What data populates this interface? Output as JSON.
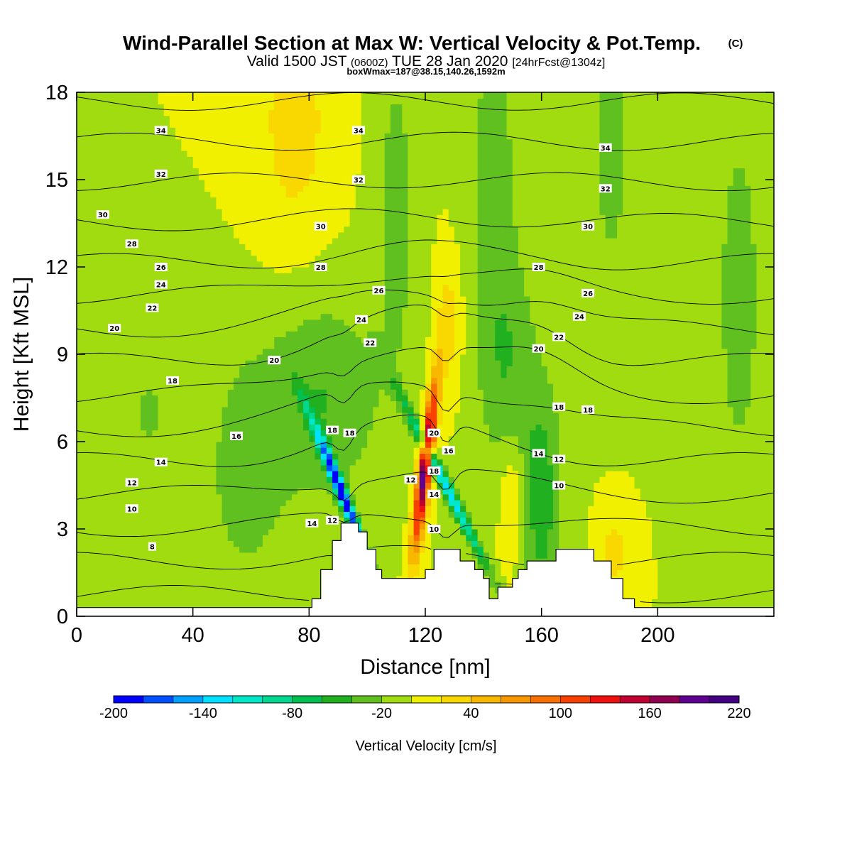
{
  "title": "Wind-Parallel Section at Max W: Vertical Velocity & Pot.Temp.",
  "title_mark": "(C)",
  "subtitle_main": "Valid 1500 JST",
  "subtitle_utc": "(0600Z)",
  "subtitle_date": "TUE 28 Jan 2020",
  "subtitle_fcst": "[24hrFcst@1304z]",
  "subtitle2": "boxWmax=187@38.15,140.26,1592m",
  "chart_data": {
    "type": "heatmap",
    "xlabel": "Distance [nm]",
    "ylabel": "Height [Kft MSL]",
    "xlim": [
      0,
      240
    ],
    "ylim": [
      0,
      18
    ],
    "x_ticks": [
      "0",
      "40",
      "80",
      "120",
      "160",
      "200"
    ],
    "y_ticks": [
      "0",
      "3",
      "6",
      "9",
      "12",
      "15",
      "18"
    ],
    "colorbar": {
      "label": "Vertical Velocity [cm/s]",
      "tick_labels": [
        "-200",
        "-140",
        "-80",
        "-20",
        "40",
        "100",
        "160",
        "220"
      ],
      "min": -200,
      "max": 220,
      "step": 20,
      "colors": [
        "#0000ff",
        "#0050ff",
        "#00a0ff",
        "#00e0ff",
        "#00e8c8",
        "#00d890",
        "#00c050",
        "#20b020",
        "#60c020",
        "#a0dc10",
        "#f0f000",
        "#f8d800",
        "#f8b800",
        "#f89800",
        "#f87000",
        "#f84000",
        "#f01010",
        "#c00030",
        "#900050",
        "#600090",
        "#400080"
      ]
    },
    "terrain_kft": [
      [
        0,
        0.3
      ],
      [
        81,
        0.3
      ],
      [
        81,
        0.6
      ],
      [
        84,
        0.6
      ],
      [
        84,
        1.6
      ],
      [
        88,
        1.6
      ],
      [
        88,
        2.6
      ],
      [
        91,
        2.6
      ],
      [
        91,
        3.2
      ],
      [
        97,
        3.2
      ],
      [
        97,
        2.9
      ],
      [
        100,
        2.9
      ],
      [
        100,
        2.3
      ],
      [
        103,
        2.3
      ],
      [
        103,
        1.6
      ],
      [
        105,
        1.6
      ],
      [
        105,
        1.3
      ],
      [
        120,
        1.3
      ],
      [
        120,
        1.6
      ],
      [
        123,
        1.6
      ],
      [
        123,
        2.3
      ],
      [
        132,
        2.3
      ],
      [
        132,
        1.9
      ],
      [
        137,
        1.9
      ],
      [
        137,
        1.6
      ],
      [
        140,
        1.6
      ],
      [
        140,
        1.3
      ],
      [
        142,
        1.3
      ],
      [
        142,
        0.6
      ],
      [
        145,
        0.6
      ],
      [
        145,
        1.0
      ],
      [
        150,
        1.0
      ],
      [
        150,
        1.3
      ],
      [
        152,
        1.3
      ],
      [
        152,
        1.6
      ],
      [
        155,
        1.6
      ],
      [
        155,
        1.9
      ],
      [
        165,
        1.9
      ],
      [
        165,
        2.3
      ],
      [
        178,
        2.3
      ],
      [
        178,
        1.9
      ],
      [
        184,
        1.9
      ],
      [
        184,
        1.3
      ],
      [
        188,
        1.3
      ],
      [
        188,
        0.6
      ],
      [
        192,
        0.6
      ],
      [
        192,
        0.3
      ],
      [
        240,
        0.3
      ]
    ],
    "w_features": [
      {
        "x": 120,
        "y": 5.2,
        "sx": 1.6,
        "sy": 2.0,
        "tilt": 0.12,
        "w": 200
      },
      {
        "x": 91,
        "y": 4.3,
        "sx": 1.4,
        "sy": 1.7,
        "tilt": -0.4,
        "w": -200
      },
      {
        "x": 127,
        "y": 4.5,
        "sx": 1.6,
        "sy": 2.0,
        "tilt": -0.5,
        "w": -130
      },
      {
        "x": 85,
        "y": 7.5,
        "sx": 14,
        "sy": 2.5,
        "tilt": 0,
        "w": -40
      },
      {
        "x": 58,
        "y": 5,
        "sx": 10,
        "sy": 3,
        "tilt": 0,
        "w": -30
      },
      {
        "x": 75,
        "y": 17,
        "sx": 9,
        "sy": 3,
        "tilt": 0,
        "w": 30
      },
      {
        "x": 110,
        "y": 14,
        "sx": 5,
        "sy": 4,
        "tilt": 0,
        "w": -30
      },
      {
        "x": 143,
        "y": 16,
        "sx": 6,
        "sy": 3,
        "tilt": 0,
        "w": -30
      },
      {
        "x": 147,
        "y": 9,
        "sx": 7,
        "sy": 3,
        "tilt": 0,
        "w": -40
      },
      {
        "x": 160,
        "y": 4,
        "sx": 5,
        "sy": 3,
        "tilt": 0,
        "w": -50
      },
      {
        "x": 184,
        "y": 16.5,
        "sx": 5,
        "sy": 4,
        "tilt": 0,
        "w": -30
      },
      {
        "x": 228,
        "y": 11,
        "sx": 6,
        "sy": 5,
        "tilt": 0,
        "w": -30
      },
      {
        "x": 128,
        "y": 10,
        "sx": 3,
        "sy": 1.5,
        "tilt": 0,
        "w": 30
      },
      {
        "x": 150,
        "y": 4,
        "sx": 3,
        "sy": 1.5,
        "tilt": 0,
        "w": 30
      },
      {
        "x": 185,
        "y": 2.2,
        "sx": 3,
        "sy": 1,
        "tilt": 0,
        "w": 30
      },
      {
        "x": 25,
        "y": 7,
        "sx": 4,
        "sy": 1.2,
        "tilt": 0,
        "w": -25
      }
    ],
    "theta_contours": {
      "levels": [
        4,
        6,
        8,
        10,
        12,
        14,
        16,
        18,
        20,
        22,
        24,
        26,
        28,
        30,
        32,
        34
      ],
      "labels": [
        {
          "text": "34",
          "x": 29,
          "y": 16.7
        },
        {
          "text": "34",
          "x": 97,
          "y": 16.7
        },
        {
          "text": "34",
          "x": 182,
          "y": 16.1
        },
        {
          "text": "32",
          "x": 29,
          "y": 15.2
        },
        {
          "text": "32",
          "x": 97,
          "y": 15.0
        },
        {
          "text": "32",
          "x": 182,
          "y": 14.7
        },
        {
          "text": "30",
          "x": 9,
          "y": 13.8
        },
        {
          "text": "30",
          "x": 84,
          "y": 13.4
        },
        {
          "text": "30",
          "x": 176,
          "y": 13.4
        },
        {
          "text": "28",
          "x": 19,
          "y": 12.8
        },
        {
          "text": "28",
          "x": 84,
          "y": 12.0
        },
        {
          "text": "28",
          "x": 159,
          "y": 12.0
        },
        {
          "text": "26",
          "x": 29,
          "y": 12.0
        },
        {
          "text": "26",
          "x": 104,
          "y": 11.2
        },
        {
          "text": "26",
          "x": 176,
          "y": 11.1
        },
        {
          "text": "24",
          "x": 29,
          "y": 11.4
        },
        {
          "text": "24",
          "x": 98,
          "y": 10.2
        },
        {
          "text": "24",
          "x": 173,
          "y": 10.3
        },
        {
          "text": "22",
          "x": 26,
          "y": 10.6
        },
        {
          "text": "22",
          "x": 101,
          "y": 9.4
        },
        {
          "text": "22",
          "x": 166,
          "y": 9.6
        },
        {
          "text": "20",
          "x": 13,
          "y": 9.9
        },
        {
          "text": "20",
          "x": 68,
          "y": 8.8
        },
        {
          "text": "20",
          "x": 159,
          "y": 9.2
        },
        {
          "text": "20",
          "x": 123,
          "y": 6.3
        },
        {
          "text": "18",
          "x": 33,
          "y": 8.1
        },
        {
          "text": "18",
          "x": 88,
          "y": 6.4
        },
        {
          "text": "18",
          "x": 94,
          "y": 6.3
        },
        {
          "text": "18",
          "x": 123,
          "y": 5.0
        },
        {
          "text": "18",
          "x": 166,
          "y": 7.2
        },
        {
          "text": "18",
          "x": 176,
          "y": 7.1
        },
        {
          "text": "16",
          "x": 55,
          "y": 6.2
        },
        {
          "text": "16",
          "x": 128,
          "y": 5.7
        },
        {
          "text": "14",
          "x": 29,
          "y": 5.3
        },
        {
          "text": "14",
          "x": 81,
          "y": 3.2
        },
        {
          "text": "14",
          "x": 123,
          "y": 4.2
        },
        {
          "text": "14",
          "x": 159,
          "y": 5.6
        },
        {
          "text": "12",
          "x": 19,
          "y": 4.6
        },
        {
          "text": "12",
          "x": 88,
          "y": 3.3
        },
        {
          "text": "12",
          "x": 115,
          "y": 4.7
        },
        {
          "text": "12",
          "x": 166,
          "y": 5.4
        },
        {
          "text": "10",
          "x": 19,
          "y": 3.7
        },
        {
          "text": "10",
          "x": 123,
          "y": 3.0
        },
        {
          "text": "10",
          "x": 166,
          "y": 4.5
        },
        {
          "text": "8",
          "x": 26,
          "y": 2.4
        }
      ]
    }
  }
}
